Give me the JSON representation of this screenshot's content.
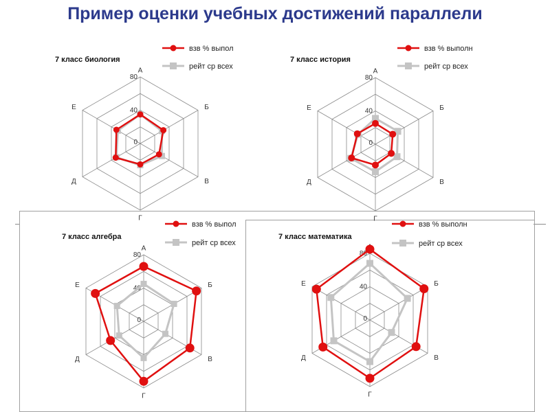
{
  "page_title": "Пример оценки учебных достижений  параллели",
  "colors": {
    "series1": "#e01010",
    "series2": "#c4c4c4",
    "grid": "#8a8a8a",
    "title": "#2c3a8c"
  },
  "chart_data": [
    {
      "type": "radar",
      "title": "7 класс биология",
      "categories": [
        "А",
        "Б",
        "В",
        "Г",
        "Д",
        "Е"
      ],
      "axis_labels": [
        "80",
        "40",
        "0"
      ],
      "rlim": [
        0,
        80
      ],
      "legend_position": "top-right",
      "series": [
        {
          "name": "взв % выпол",
          "values": [
            35,
            32,
            26,
            25,
            34,
            33
          ]
        },
        {
          "name": "рейт ср всех",
          "values": [
            35,
            30,
            30,
            26,
            33,
            31
          ]
        }
      ]
    },
    {
      "type": "radar",
      "title": "7 класс история",
      "categories": [
        "А",
        "Б",
        "В",
        "Г",
        "Д",
        "Е"
      ],
      "axis_labels": [
        "80",
        "40",
        "0"
      ],
      "rlim": [
        0,
        80
      ],
      "legend_position": "top-right",
      "series": [
        {
          "name": "взв % выполн",
          "values": [
            25,
            24,
            22,
            25,
            33,
            25
          ]
        },
        {
          "name": "рейт ср всех",
          "values": [
            31,
            31,
            30,
            33,
            34,
            24
          ]
        }
      ]
    },
    {
      "type": "radar",
      "title": "7 класс алгебра",
      "categories": [
        "А",
        "Б",
        "В",
        "Г",
        "Д",
        "Е"
      ],
      "axis_labels": [
        "80",
        "40",
        "0"
      ],
      "rlim": [
        0,
        80
      ],
      "legend_position": "top-right",
      "series": [
        {
          "name": "взв % выпол",
          "values": [
            66,
            73,
            64,
            72,
            46,
            67
          ]
        },
        {
          "name": "рейт ср всех",
          "values": [
            45,
            42,
            30,
            44,
            34,
            37
          ]
        }
      ]
    },
    {
      "type": "radar",
      "title": "7 класс математика",
      "categories": [
        "А",
        "Б",
        "В",
        "Г",
        "Д",
        "Е"
      ],
      "axis_labels": [
        "80",
        "40",
        "0"
      ],
      "rlim": [
        0,
        80
      ],
      "legend_position": "top-right",
      "series": [
        {
          "name": "взв % выполн",
          "values": [
            85,
            75,
            64,
            70,
            65,
            74
          ]
        },
        {
          "name": "рейт ср всех",
          "values": [
            68,
            52,
            30,
            50,
            50,
            54
          ]
        }
      ]
    }
  ]
}
